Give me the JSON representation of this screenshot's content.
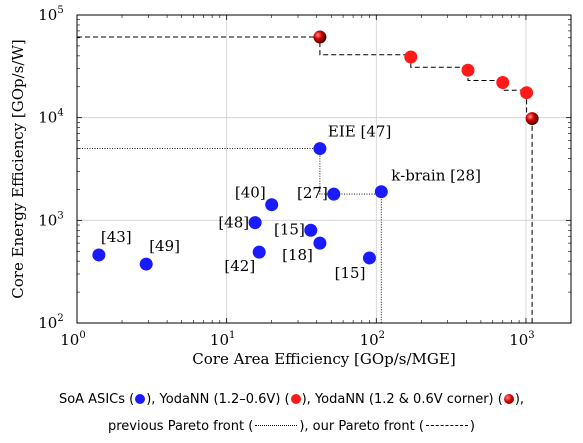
{
  "chart_data": {
    "type": "scatter",
    "xlabel": "Core Area Efficiency [GOp/s/MGE]",
    "ylabel": "Core Energy Efficiency [GOp/s/W]",
    "xscale": "log",
    "yscale": "log",
    "xlim": [
      1,
      2000
    ],
    "ylim": [
      100,
      100000
    ],
    "grid": true,
    "x_ticks": [
      {
        "value": 1,
        "base": "10",
        "exp": "0"
      },
      {
        "value": 10,
        "base": "10",
        "exp": "1"
      },
      {
        "value": 100,
        "base": "10",
        "exp": "2"
      },
      {
        "value": 1000,
        "base": "10",
        "exp": "3"
      }
    ],
    "y_ticks": [
      {
        "value": 100,
        "base": "10",
        "exp": "2"
      },
      {
        "value": 1000,
        "base": "10",
        "exp": "3"
      },
      {
        "value": 10000,
        "base": "10",
        "exp": "4"
      },
      {
        "value": 100000,
        "base": "10",
        "exp": "5"
      }
    ],
    "series": [
      {
        "name": "SoA ASICs",
        "color": "#1a1aff",
        "points": [
          {
            "x": 1.4,
            "y": 460,
            "label": "[43]",
            "anchor": "start",
            "dx": 2,
            "dy": -13
          },
          {
            "x": 2.9,
            "y": 375,
            "label": "[49]",
            "anchor": "start",
            "dx": 3,
            "dy": -13
          },
          {
            "x": 15.5,
            "y": 950,
            "label": "[48]",
            "anchor": "end",
            "dx": -6,
            "dy": 5
          },
          {
            "x": 16.5,
            "y": 490,
            "label": "[42]",
            "anchor": "end",
            "dx": -4,
            "dy": 19
          },
          {
            "x": 20,
            "y": 1420,
            "label": "[40]",
            "anchor": "end",
            "dx": -6,
            "dy": -7
          },
          {
            "x": 36.5,
            "y": 800,
            "label": "[15]",
            "anchor": "end",
            "dx": -6,
            "dy": 4
          },
          {
            "x": 42,
            "y": 600,
            "label": "[18]",
            "anchor": "end",
            "dx": -7,
            "dy": 17
          },
          {
            "x": 42,
            "y": 5000,
            "label": "EIE [47]",
            "anchor": "start",
            "dx": 8,
            "dy": -12
          },
          {
            "x": 52,
            "y": 1800,
            "label": "[27]",
            "anchor": "end",
            "dx": -6,
            "dy": 4
          },
          {
            "x": 90,
            "y": 430,
            "label": "[15]",
            "anchor": "end",
            "dx": -4,
            "dy": 20
          },
          {
            "x": 108,
            "y": 1900,
            "label": "k-brain [28]",
            "anchor": "start",
            "dx": 10,
            "dy": -11
          }
        ]
      },
      {
        "name": "YodaNN (1.2–0.6V)",
        "color": "#ff1a1a",
        "points": [
          {
            "x": 170,
            "y": 39000
          },
          {
            "x": 410,
            "y": 29000
          },
          {
            "x": 700,
            "y": 22000
          },
          {
            "x": 1010,
            "y": 17500
          }
        ]
      },
      {
        "name": "YodaNN (1.2 & 0.6V corner)",
        "color": "#c00000",
        "points": [
          {
            "x": 42,
            "y": 61000
          },
          {
            "x": 1100,
            "y": 9800
          }
        ]
      }
    ],
    "fronts": [
      {
        "name": "previous Pareto front",
        "style": "dotted",
        "points": [
          [
            1,
            5000
          ],
          [
            42,
            5000
          ],
          [
            42,
            1800
          ],
          [
            108,
            1800
          ],
          [
            108,
            100
          ]
        ]
      },
      {
        "name": "our Pareto front",
        "style": "dashed",
        "points": [
          [
            1,
            61000
          ],
          [
            42,
            61000
          ],
          [
            42,
            41000
          ],
          [
            170,
            41000
          ],
          [
            170,
            31000
          ],
          [
            410,
            31000
          ],
          [
            410,
            23000
          ],
          [
            700,
            23000
          ],
          [
            700,
            18500
          ],
          [
            1010,
            18500
          ],
          [
            1010,
            10000
          ],
          [
            1100,
            10000
          ],
          [
            1100,
            100
          ]
        ]
      }
    ]
  },
  "legend": {
    "soa_label": "SoA ASICs (",
    "sep1": "), YodaNN (1.2–0.6V) (",
    "sep2": "), YodaNN (1.2 & 0.6V corner) (",
    "end1": "),",
    "prev_label": "previous Pareto front (",
    "sep3": "), our Pareto front (",
    "end2": ")"
  }
}
